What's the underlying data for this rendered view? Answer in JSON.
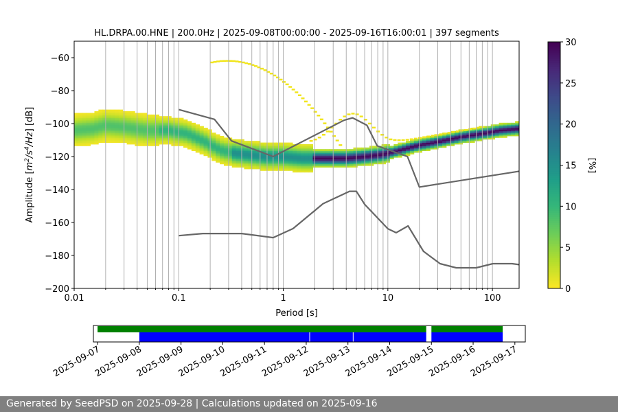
{
  "chart_data": [
    {
      "type": "heatmap",
      "title": "HL.DRPA.00.HNE | 200.0Hz | 2025-09-08T00:00:00 - 2025-09-16T16:00:01 | 397 segments",
      "xlabel": "Period [s]",
      "ylabel_parts": [
        "Amplitude [",
        "m",
        "2",
        "/s",
        "4",
        "/Hz",
        "] [dB]"
      ],
      "x_scale": "log",
      "xlim": [
        0.01,
        180
      ],
      "ylim": [
        -200,
        -50
      ],
      "x_ticks": [
        0.01,
        0.1,
        1,
        10,
        100
      ],
      "x_tick_labels": [
        "0.01",
        "0.1",
        "1",
        "10",
        "100"
      ],
      "y_ticks": [
        -200,
        -180,
        -160,
        -140,
        -120,
        -100,
        -80,
        -60
      ],
      "y_tick_labels": [
        "−200",
        "−180",
        "−160",
        "−140",
        "−120",
        "−100",
        "−80",
        "−60"
      ],
      "grid": "x-minor-and-major",
      "colorbar": {
        "label": "[%]",
        "range": [
          0,
          30
        ],
        "ticks": [
          0,
          5,
          10,
          15,
          20,
          25,
          30
        ],
        "tick_labels": [
          "0",
          "5",
          "10",
          "15",
          "20",
          "25",
          "30"
        ],
        "colormap": "viridis_r"
      },
      "mode_curve": {
        "period": [
          0.01,
          0.015,
          0.02,
          0.03,
          0.05,
          0.08,
          0.12,
          0.18,
          0.25,
          0.35,
          0.5,
          0.7,
          1.0,
          1.5,
          2,
          3,
          4,
          6,
          8,
          10,
          15,
          20,
          30,
          50,
          80,
          120,
          180
        ],
        "db": [
          -104,
          -103,
          -101,
          -102,
          -104,
          -104,
          -106,
          -111,
          -116,
          -118,
          -119,
          -120,
          -120,
          -121,
          -121,
          -121,
          -121,
          -120,
          -119,
          -118,
          -115,
          -113,
          -111,
          -108,
          -106,
          -104,
          -103
        ]
      },
      "noise_models": [
        {
          "period": [
            0.1,
            0.17,
            0.4,
            0.8,
            1.24,
            2.4,
            4.3,
            5.0,
            6.0,
            10.0,
            12.0,
            15.6,
            21.9,
            31.6,
            45.0,
            70.0,
            101.0,
            154.0,
            180.0
          ],
          "db": [
            -168,
            -166.7,
            -166.7,
            -169.2,
            -163.7,
            -148.6,
            -141.1,
            -141.1,
            -149.0,
            -163.8,
            -166.2,
            -162.1,
            -177.5,
            -185.0,
            -187.5,
            -187.5,
            -185.0,
            -185.0,
            -185.6
          ]
        },
        {
          "period": [
            0.1,
            0.22,
            0.32,
            0.8,
            3.8,
            4.6,
            6.3,
            7.9,
            15.4,
            20.0,
            180.0
          ],
          "db": [
            -91.5,
            -97.4,
            -110.5,
            -120.0,
            -98.0,
            -96.5,
            -101.0,
            -113.5,
            -120.0,
            -138.5,
            -128.9
          ]
        }
      ]
    },
    {
      "type": "timeline",
      "x_tick_labels": [
        "2025-09-07",
        "2025-09-08",
        "2025-09-09",
        "2025-09-10",
        "2025-09-11",
        "2025-09-12",
        "2025-09-13",
        "2025-09-14",
        "2025-09-15",
        "2025-09-16",
        "2025-09-17"
      ],
      "xlim": [
        "2025-09-06T21:36",
        "2025-09-17T06:00"
      ],
      "rows": [
        {
          "color": "#008000",
          "spans": [
            [
              "2025-09-07T00:00",
              "2025-09-14T21:00"
            ],
            [
              "2025-09-15T00:00",
              "2025-09-16T17:00"
            ]
          ]
        },
        {
          "color": "#0000ff",
          "spans": [
            [
              "2025-09-08T00:00",
              "2025-09-14T21:00"
            ],
            [
              "2025-09-15T00:00",
              "2025-09-16T17:00"
            ]
          ]
        }
      ],
      "row_separators": [
        "2025-09-12T02:00",
        "2025-09-13T03:00"
      ]
    }
  ],
  "footer": {
    "text": "Generated by SeedPSD on 2025-09-28 | Calculations updated on 2025-09-16"
  }
}
